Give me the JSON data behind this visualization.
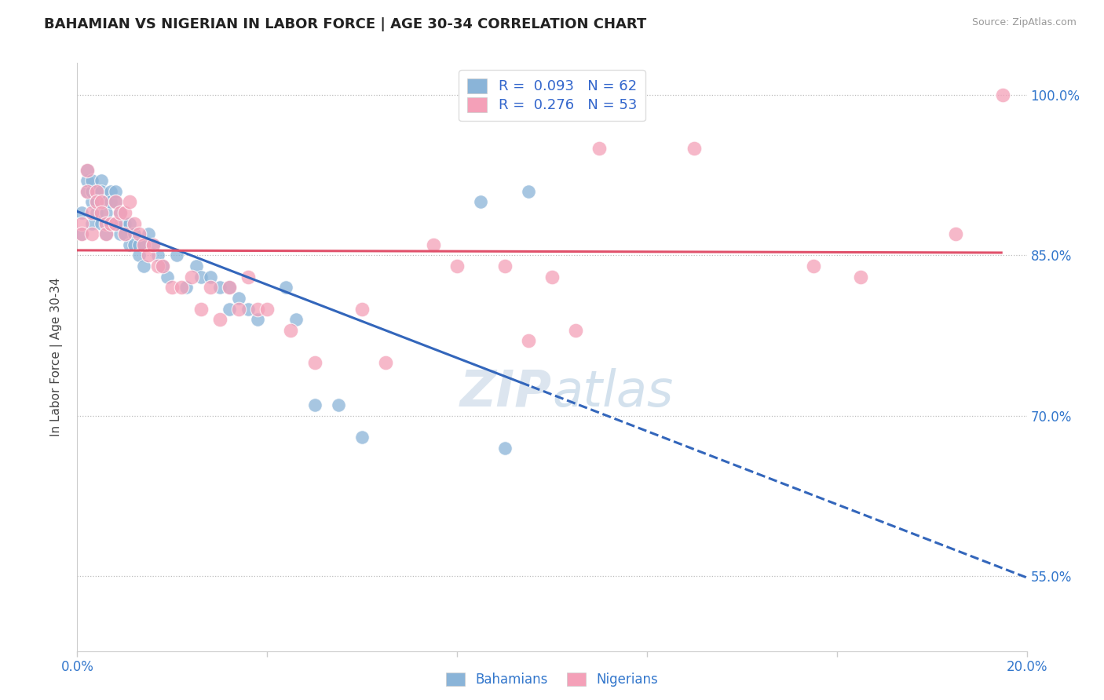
{
  "title": "BAHAMIAN VS NIGERIAN IN LABOR FORCE | AGE 30-34 CORRELATION CHART",
  "source_text": "Source: ZipAtlas.com",
  "ylabel": "In Labor Force | Age 30-34",
  "xlim": [
    0.0,
    0.2
  ],
  "ylim": [
    0.48,
    1.03
  ],
  "xticks": [
    0.0,
    0.04,
    0.08,
    0.12,
    0.16,
    0.2
  ],
  "xtick_labels": [
    "0.0%",
    "",
    "",
    "",
    "",
    "20.0%"
  ],
  "ytick_positions": [
    0.55,
    0.7,
    0.85,
    1.0
  ],
  "ytick_labels": [
    "55.0%",
    "70.0%",
    "85.0%",
    "100.0%"
  ],
  "R_blue": 0.093,
  "N_blue": 62,
  "R_pink": 0.276,
  "N_pink": 53,
  "blue_color": "#8ab4d8",
  "pink_color": "#f4a0b8",
  "blue_line_color": "#3366bb",
  "pink_line_color": "#e0506a",
  "legend_r_color": "#3366cc",
  "title_color": "#222222",
  "axis_label_color": "#3377cc",
  "watermark_color": "#d0dce8",
  "background_color": "#ffffff",
  "blue_x": [
    0.001,
    0.001,
    0.002,
    0.002,
    0.002,
    0.003,
    0.003,
    0.003,
    0.003,
    0.004,
    0.004,
    0.004,
    0.005,
    0.005,
    0.005,
    0.005,
    0.006,
    0.006,
    0.006,
    0.007,
    0.007,
    0.007,
    0.008,
    0.008,
    0.008,
    0.009,
    0.009,
    0.009,
    0.01,
    0.01,
    0.011,
    0.011,
    0.012,
    0.012,
    0.013,
    0.013,
    0.014,
    0.014,
    0.015,
    0.016,
    0.017,
    0.018,
    0.019,
    0.021,
    0.023,
    0.025,
    0.026,
    0.028,
    0.03,
    0.032,
    0.032,
    0.034,
    0.036,
    0.038,
    0.044,
    0.046,
    0.05,
    0.055,
    0.06,
    0.085,
    0.09,
    0.095
  ],
  "blue_y": [
    0.87,
    0.89,
    0.91,
    0.92,
    0.93,
    0.9,
    0.91,
    0.92,
    0.88,
    0.91,
    0.9,
    0.89,
    0.92,
    0.91,
    0.9,
    0.88,
    0.9,
    0.89,
    0.87,
    0.91,
    0.9,
    0.88,
    0.91,
    0.9,
    0.88,
    0.89,
    0.88,
    0.87,
    0.88,
    0.87,
    0.88,
    0.86,
    0.87,
    0.86,
    0.86,
    0.85,
    0.86,
    0.84,
    0.87,
    0.86,
    0.85,
    0.84,
    0.83,
    0.85,
    0.82,
    0.84,
    0.83,
    0.83,
    0.82,
    0.82,
    0.8,
    0.81,
    0.8,
    0.79,
    0.82,
    0.79,
    0.71,
    0.71,
    0.68,
    0.9,
    0.67,
    0.91
  ],
  "pink_x": [
    0.001,
    0.001,
    0.002,
    0.002,
    0.003,
    0.003,
    0.004,
    0.004,
    0.005,
    0.005,
    0.006,
    0.006,
    0.007,
    0.008,
    0.008,
    0.009,
    0.01,
    0.01,
    0.011,
    0.012,
    0.013,
    0.014,
    0.015,
    0.016,
    0.017,
    0.018,
    0.02,
    0.022,
    0.024,
    0.026,
    0.028,
    0.03,
    0.032,
    0.034,
    0.036,
    0.038,
    0.04,
    0.045,
    0.05,
    0.06,
    0.065,
    0.075,
    0.08,
    0.09,
    0.095,
    0.1,
    0.105,
    0.11,
    0.13,
    0.155,
    0.165,
    0.185,
    0.195
  ],
  "pink_y": [
    0.88,
    0.87,
    0.93,
    0.91,
    0.89,
    0.87,
    0.91,
    0.9,
    0.9,
    0.89,
    0.88,
    0.87,
    0.88,
    0.9,
    0.88,
    0.89,
    0.89,
    0.87,
    0.9,
    0.88,
    0.87,
    0.86,
    0.85,
    0.86,
    0.84,
    0.84,
    0.82,
    0.82,
    0.83,
    0.8,
    0.82,
    0.79,
    0.82,
    0.8,
    0.83,
    0.8,
    0.8,
    0.78,
    0.75,
    0.8,
    0.75,
    0.86,
    0.84,
    0.84,
    0.77,
    0.83,
    0.78,
    0.95,
    0.95,
    0.84,
    0.83,
    0.87,
    1.0
  ]
}
